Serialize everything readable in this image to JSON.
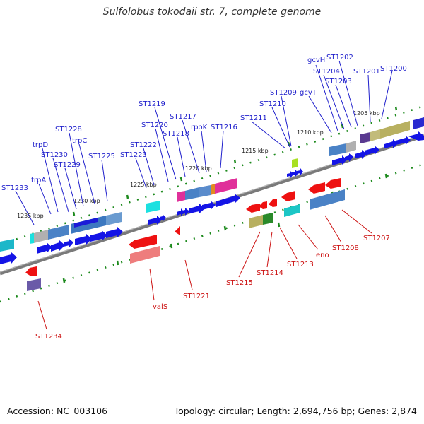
{
  "title": "Sulfolobus tokodaii str. 7, complete genome",
  "footer": {
    "accession": "Accession: NC_003106",
    "summary": "Topology: circular; Length: 2,694,756 bp; Genes: 2,874"
  },
  "colors": {
    "forward_label": "#1f1fcc",
    "reverse_label": "#cc1111",
    "backbone": "#7a7a7a",
    "tick": "#1d8a1d",
    "forward_arrow": "#1414e6",
    "reverse_arrow": "#ee1111"
  },
  "scale_labels": [
    "1235 kbp",
    "1230 kbp",
    "1225 kbp",
    "1220 kbp",
    "1215 kbp",
    "1210 kbp",
    "1205 kbp"
  ],
  "forward_genes": [
    "ST1233",
    "trpA",
    "trpD",
    "ST1230",
    "ST1229",
    "ST1228",
    "trpC",
    "ST1225",
    "ST1223",
    "ST1222",
    "ST1220",
    "ST1219",
    "ST1218",
    "ST1217",
    "rpoK",
    "ST1216",
    "ST1211",
    "ST1210",
    "ST1209",
    "gcvT",
    "gcvH",
    "ST1204",
    "ST1203",
    "ST1202",
    "ST1201",
    "ST1200"
  ],
  "reverse_genes": [
    "ST1234",
    "valS",
    "ST1221",
    "ST1215",
    "ST1214",
    "ST1213",
    "eno",
    "ST1208",
    "ST1207"
  ]
}
